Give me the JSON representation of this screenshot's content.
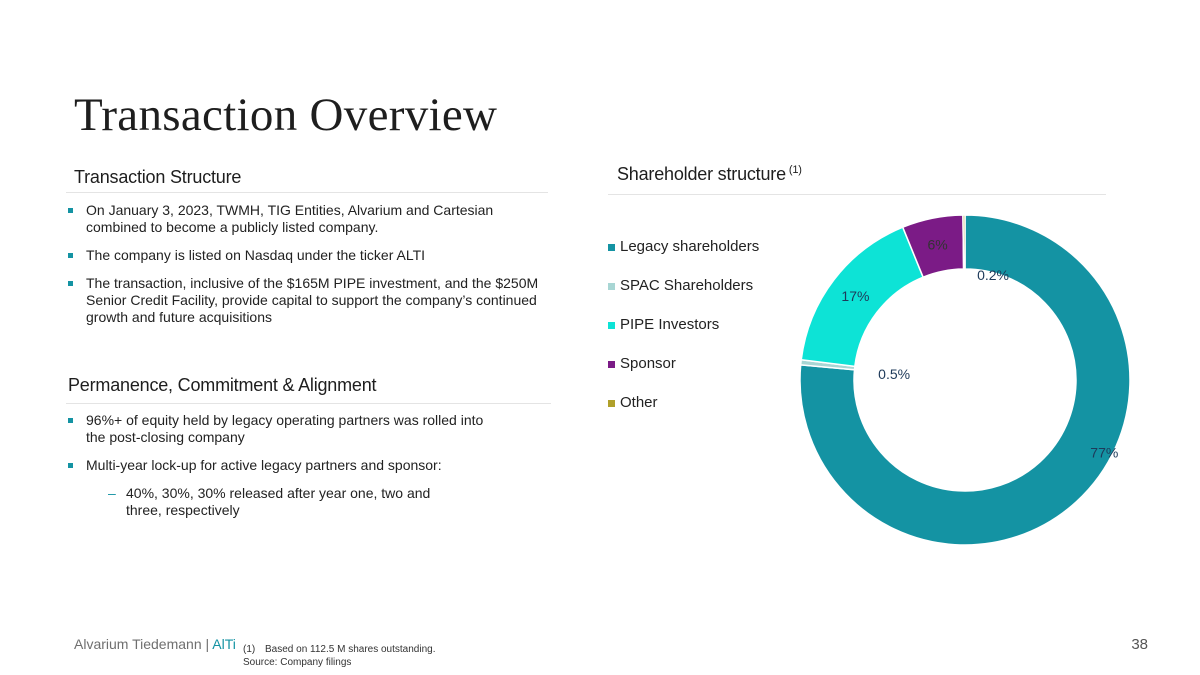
{
  "title": "Transaction Overview",
  "left": {
    "structure_heading": "Transaction Structure",
    "structure_bullets": [
      "On January 3, 2023, TWMH, TIG Entities, Alvarium and Cartesian combined to become a publicly listed company.",
      "The company is listed on Nasdaq under the ticker ALTI",
      "The transaction, inclusive of the $165M PIPE investment, and the $250M Senior Credit Facility, provide capital to support the company’s continued growth and future acquisitions"
    ],
    "permanence_heading": "Permanence, Commitment & Alignment",
    "permanence_bullets": [
      "96%+ of equity held by legacy operating partners was rolled into the post-closing company",
      "Multi-year lock-up for active legacy partners and sponsor:"
    ],
    "permanence_sub_bullet": "40%, 30%, 30% released after year one, two and three, respectively",
    "dash_glyph": "–"
  },
  "right": {
    "heading": "Shareholder structure",
    "heading_sup": "(1)"
  },
  "chart_data": {
    "type": "pie",
    "subtype": "donut",
    "title": "Shareholder structure",
    "categories": [
      "Legacy shareholders",
      "SPAC Shareholders",
      "PIPE Investors",
      "Sponsor",
      "Other"
    ],
    "values": [
      77,
      0.5,
      17,
      6,
      0.2
    ],
    "data_labels": [
      "77%",
      "0.5%",
      "17%",
      "6%",
      "0.2%"
    ],
    "colors": [
      "#1493a3",
      "#a8d6d4",
      "#0de3d6",
      "#7b1b86",
      "#b0a02a"
    ],
    "legend_position": "left"
  },
  "footer": {
    "brand": "Alvarium Tiedemann |",
    "ticker": "AlTi",
    "footnote_num": "(1)",
    "footnote_text": "Based on 112.5 M shares outstanding.",
    "source": "Source: Company filings",
    "page_number": "38"
  }
}
